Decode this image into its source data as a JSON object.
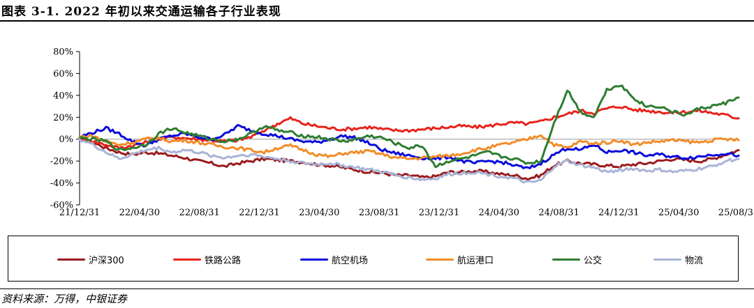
{
  "header": {
    "title": "图表 3-1. 2022 年初以来交通运输各子行业表现"
  },
  "footer": {
    "source": "资料来源：万得，中银证券"
  },
  "chart_data": {
    "type": "line",
    "ylim": [
      -60,
      80
    ],
    "y_ticks": [
      "80%",
      "60%",
      "40%",
      "20%",
      "0%",
      "-20%",
      "-40%",
      "-60%"
    ],
    "y_tick_values": [
      80,
      60,
      40,
      20,
      0,
      -20,
      -40,
      -60
    ],
    "x_ticks": [
      "21/12/31",
      "22/04/30",
      "22/08/31",
      "22/12/31",
      "23/04/30",
      "23/08/31",
      "23/12/31",
      "24/04/30",
      "24/08/31",
      "24/12/31",
      "25/04/30",
      "25/08/31"
    ],
    "legend_position": "bottom",
    "series": [
      {
        "name": "沪深300",
        "color": "#9B1B1E",
        "values": [
          0,
          -3,
          -8,
          -12,
          -14,
          -12,
          -13,
          -15,
          -17,
          -20,
          -22,
          -25,
          -22,
          -20,
          -18,
          -19,
          -20,
          -21,
          -23,
          -24,
          -26,
          -28,
          -30,
          -31,
          -33,
          -33,
          -35,
          -34,
          -30,
          -30,
          -29,
          -30,
          -32,
          -33,
          -36,
          -33,
          -24,
          -20,
          -22,
          -23,
          -24,
          -25,
          -23,
          -22,
          -20,
          -18,
          -19,
          -20,
          -18,
          -14,
          -10
        ]
      },
      {
        "name": "铁路公路",
        "color": "#E8231B",
        "values": [
          0,
          -2,
          -5,
          -8,
          -6,
          -3,
          0,
          2,
          1,
          0,
          -1,
          -2,
          -1,
          2,
          8,
          14,
          19,
          14,
          12,
          10,
          9,
          10,
          11,
          9,
          8,
          8,
          9,
          10,
          11,
          12,
          11,
          12,
          14,
          15,
          14,
          16,
          20,
          23,
          26,
          24,
          28,
          30,
          27,
          26,
          25,
          24,
          25,
          26,
          24,
          22,
          19
        ]
      },
      {
        "name": "航空机场",
        "color": "#0A0ADC",
        "values": [
          2,
          6,
          10,
          5,
          -2,
          -6,
          0,
          3,
          5,
          2,
          0,
          4,
          12,
          8,
          5,
          3,
          0,
          -2,
          -3,
          0,
          3,
          1,
          -4,
          -10,
          -13,
          -15,
          -17,
          -18,
          -16,
          -20,
          -22,
          -20,
          -21,
          -24,
          -27,
          -22,
          -14,
          -8,
          -10,
          -5,
          -12,
          -10,
          -12,
          -15,
          -14,
          -16,
          -17,
          -16,
          -14,
          -13,
          -15
        ]
      },
      {
        "name": "航运港口",
        "color": "#F28C28",
        "values": [
          2,
          3,
          -2,
          -5,
          -3,
          0,
          1,
          -2,
          -1,
          -3,
          -5,
          -7,
          -8,
          -10,
          -12,
          -8,
          -6,
          -10,
          -14,
          -16,
          -13,
          -12,
          -11,
          -14,
          -17,
          -18,
          -17,
          -16,
          -15,
          -13,
          -10,
          -8,
          -5,
          -3,
          0,
          4,
          -5,
          -8,
          -2,
          -4,
          -3,
          -1,
          -5,
          -3,
          -2,
          -1,
          -2,
          -3,
          -1,
          0,
          -1
        ]
      },
      {
        "name": "公交",
        "color": "#2E7D32",
        "values": [
          1,
          0,
          -2,
          -10,
          -8,
          -5,
          5,
          10,
          6,
          3,
          0,
          -2,
          0,
          5,
          12,
          8,
          6,
          3,
          2,
          0,
          -2,
          0,
          3,
          1,
          -4,
          -8,
          -6,
          -25,
          -20,
          -18,
          -15,
          -12,
          -16,
          -18,
          -22,
          -20,
          15,
          45,
          25,
          20,
          45,
          50,
          38,
          30,
          30,
          25,
          22,
          28,
          30,
          33,
          38
        ]
      },
      {
        "name": "物流",
        "color": "#A9B4D6",
        "values": [
          0,
          -5,
          -12,
          -18,
          -14,
          -10,
          -8,
          -12,
          -10,
          -12,
          -15,
          -17,
          -15,
          -14,
          -16,
          -18,
          -20,
          -22,
          -23,
          -22,
          -24,
          -26,
          -28,
          -30,
          -33,
          -35,
          -37,
          -36,
          -32,
          -31,
          -30,
          -32,
          -34,
          -36,
          -40,
          -38,
          -25,
          -20,
          -24,
          -26,
          -30,
          -28,
          -27,
          -29,
          -28,
          -30,
          -29,
          -27,
          -25,
          -20,
          -18
        ]
      }
    ]
  }
}
